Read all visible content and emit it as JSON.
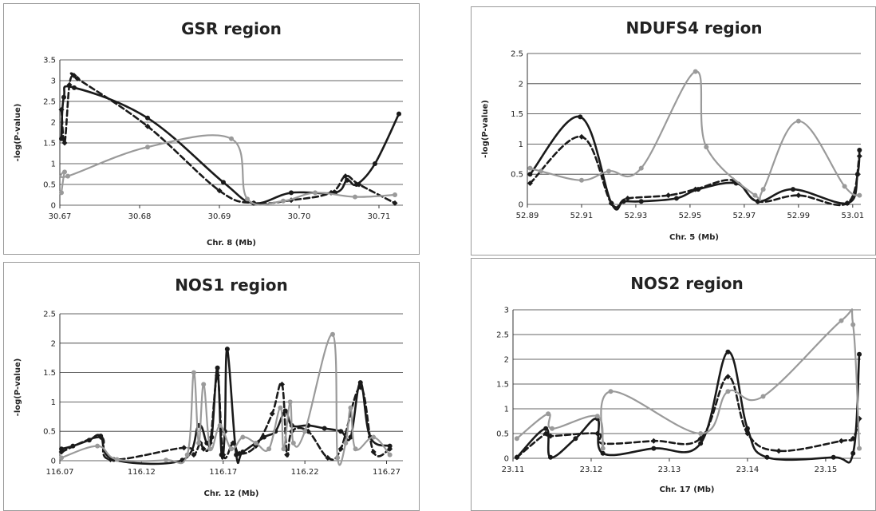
{
  "chart_data": [
    {
      "type": "line",
      "title": "GSR region",
      "xlabel": "Chr. 8 (Mb)",
      "ylabel": "-log(P-value)",
      "xlim": [
        30.67,
        30.713
      ],
      "ylim": [
        0,
        3.5
      ],
      "xticks": [
        "30.67",
        "30.68",
        "30.69",
        "30.70",
        "30.71"
      ],
      "xtick_values": [
        30.67,
        30.68,
        30.69,
        30.7,
        30.71
      ],
      "yticks": [
        "0",
        "0.5",
        "1",
        "1.5",
        "2",
        "2.5",
        "3",
        "3.5"
      ],
      "ytick_values": [
        0,
        0.5,
        1,
        1.5,
        2,
        2.5,
        3,
        3.5
      ],
      "grid": true,
      "series": [
        {
          "style": "solid",
          "color": "#1a1a1a",
          "marker": true,
          "x": [
            30.6702,
            30.6705,
            30.6718,
            30.681,
            30.6905,
            30.6943,
            30.699,
            30.7045,
            30.706,
            30.7072,
            30.7095,
            30.7125
          ],
          "y": [
            1.6,
            2.6,
            2.83,
            2.1,
            0.55,
            0.05,
            0.3,
            0.3,
            0.6,
            0.5,
            1.0,
            2.2
          ]
        },
        {
          "style": "dashed",
          "color": "#1a1a1a",
          "marker": true,
          "x": [
            30.6702,
            30.6706,
            30.6712,
            30.6718,
            30.6722,
            30.681,
            30.69,
            30.6943,
            30.699,
            30.704,
            30.7058,
            30.7075,
            30.712
          ],
          "y": [
            2.3,
            1.5,
            2.9,
            3.12,
            3.05,
            1.9,
            0.35,
            0.05,
            0.12,
            0.3,
            0.7,
            0.5,
            0.05
          ]
        },
        {
          "style": "solid",
          "color": "#9a9a9a",
          "marker": true,
          "x": [
            30.6702,
            30.6706,
            30.671,
            30.681,
            30.6915,
            30.6935,
            30.698,
            30.702,
            30.707,
            30.712
          ],
          "y": [
            0.3,
            0.8,
            0.7,
            1.4,
            1.6,
            0.15,
            0.1,
            0.3,
            0.2,
            0.25
          ]
        }
      ]
    },
    {
      "type": "line",
      "title": "NDUFS4 region",
      "xlabel": "Chr. 5 (Mb)",
      "ylabel": "-log(P-value)",
      "xlim": [
        52.89,
        53.013
      ],
      "ylim": [
        0,
        2.5
      ],
      "xticks": [
        "52.89",
        "52.91",
        "52.93",
        "52.95",
        "52.97",
        "52.99",
        "53.01"
      ],
      "xtick_values": [
        52.89,
        52.91,
        52.93,
        52.95,
        52.97,
        52.99,
        53.01
      ],
      "yticks": [
        "0",
        "0.5",
        "1",
        "1.5",
        "2",
        "2.5"
      ],
      "ytick_values": [
        0,
        0.5,
        1,
        1.5,
        2,
        2.5
      ],
      "grid": true,
      "series": [
        {
          "style": "solid",
          "color": "#1a1a1a",
          "marker": true,
          "x": [
            52.891,
            52.9095,
            52.921,
            52.9255,
            52.932,
            52.945,
            52.953,
            52.967,
            52.975,
            52.988,
            53.008,
            53.0118,
            53.0125
          ],
          "y": [
            0.5,
            1.45,
            0.02,
            0.05,
            0.05,
            0.1,
            0.25,
            0.35,
            0.05,
            0.25,
            0.02,
            0.5,
            0.9
          ]
        },
        {
          "style": "dashed",
          "color": "#1a1a1a",
          "marker": true,
          "x": [
            52.891,
            52.91,
            52.921,
            52.927,
            52.942,
            52.952,
            52.966,
            52.975,
            52.99,
            53.008,
            53.0125
          ],
          "y": [
            0.35,
            1.12,
            0.02,
            0.1,
            0.15,
            0.25,
            0.4,
            0.05,
            0.15,
            0.02,
            0.8
          ]
        },
        {
          "style": "solid",
          "color": "#9a9a9a",
          "marker": true,
          "x": [
            52.891,
            52.895,
            52.91,
            52.92,
            52.932,
            52.952,
            52.956,
            52.974,
            52.977,
            52.99,
            53.007,
            53.0125
          ],
          "y": [
            0.6,
            0.55,
            0.4,
            0.55,
            0.6,
            2.2,
            0.95,
            0.15,
            0.25,
            1.38,
            0.3,
            0.15
          ]
        }
      ]
    },
    {
      "type": "line",
      "title": "NOS1 region",
      "xlabel": "Chr. 12 (Mb)",
      "ylabel": "-log(P-value)",
      "xlim": [
        116.07,
        116.28
      ],
      "ylim": [
        0,
        2.5
      ],
      "xticks": [
        "116.07",
        "116.12",
        "116.17",
        "116.22",
        "116.27"
      ],
      "xtick_values": [
        116.07,
        116.12,
        116.17,
        116.22,
        116.27
      ],
      "yticks": [
        "0",
        "0.5",
        "1",
        "1.5",
        "2",
        "2.5"
      ],
      "ytick_values": [
        0,
        0.5,
        1,
        1.5,
        2,
        2.5
      ],
      "grid": true,
      "series": [
        {
          "style": "solid",
          "color": "#1a1a1a",
          "marker": true,
          "x": [
            116.071,
            116.078,
            116.088,
            116.095,
            116.103,
            116.145,
            116.155,
            116.16,
            116.163,
            116.1665,
            116.169,
            116.171,
            116.1725,
            116.178,
            116.182,
            116.195,
            116.202,
            116.208,
            116.212,
            116.222,
            116.232,
            116.242,
            116.248,
            116.254,
            116.26,
            116.272
          ],
          "y": [
            0.2,
            0.25,
            0.35,
            0.42,
            0.02,
            0.01,
            0.6,
            0.3,
            0.4,
            1.58,
            0.1,
            0.5,
            1.9,
            0.1,
            0.15,
            0.4,
            0.5,
            0.85,
            0.6,
            0.6,
            0.55,
            0.5,
            0.4,
            1.33,
            0.4,
            0.25
          ]
        },
        {
          "style": "dashed",
          "color": "#1a1a1a",
          "marker": true,
          "x": [
            116.071,
            116.095,
            116.101,
            116.146,
            116.152,
            116.156,
            116.158,
            116.162,
            116.1665,
            116.17,
            116.176,
            116.18,
            116.19,
            116.2,
            116.206,
            116.209,
            116.212,
            116.222,
            116.234,
            116.242,
            116.254,
            116.262,
            116.272
          ],
          "y": [
            0.15,
            0.4,
            0.02,
            0.22,
            0.1,
            0.3,
            0.2,
            0.3,
            1.45,
            0.1,
            0.3,
            0.12,
            0.25,
            0.8,
            1.3,
            0.1,
            0.5,
            0.5,
            0.05,
            0.2,
            1.25,
            0.15,
            0.2
          ]
        },
        {
          "style": "solid",
          "color": "#9a9a9a",
          "marker": true,
          "x": [
            116.071,
            116.093,
            116.105,
            116.135,
            116.148,
            116.152,
            116.155,
            116.158,
            116.162,
            116.168,
            116.175,
            116.182,
            116.19,
            116.198,
            116.205,
            116.207,
            116.211,
            116.213,
            116.22,
            116.237,
            116.24,
            116.245,
            116.248,
            116.251,
            116.262,
            116.272
          ],
          "y": [
            0.05,
            0.25,
            0.02,
            0.01,
            0.1,
            1.5,
            0.3,
            1.3,
            0.2,
            0.6,
            0.2,
            0.4,
            0.3,
            0.2,
            0.9,
            0.2,
            1.0,
            0.3,
            0.5,
            2.15,
            0.05,
            0.3,
            0.9,
            0.2,
            0.4,
            0.1
          ]
        }
      ]
    },
    {
      "type": "line",
      "title": "NOS2 region",
      "xlabel": "Chr. 17 (Mb)",
      "ylabel": "",
      "xlim": [
        23.11,
        23.1545
      ],
      "ylim": [
        0,
        3
      ],
      "xticks": [
        "23.11",
        "23.12",
        "23.13",
        "23.14",
        "23.15"
      ],
      "xtick_values": [
        23.11,
        23.12,
        23.13,
        23.14,
        23.15
      ],
      "yticks": [
        "0",
        "0.5",
        "1",
        "1.5",
        "2",
        "2.5",
        "3"
      ],
      "ytick_values": [
        0,
        0.5,
        1,
        1.5,
        2,
        2.5,
        3
      ],
      "grid": true,
      "series": [
        {
          "style": "solid",
          "color": "#1a1a1a",
          "marker": true,
          "x": [
            23.1105,
            23.1142,
            23.1148,
            23.118,
            23.1208,
            23.1215,
            23.128,
            23.134,
            23.1375,
            23.14,
            23.1425,
            23.151,
            23.1535,
            23.1543
          ],
          "y": [
            0.02,
            0.6,
            0.02,
            0.4,
            0.8,
            0.1,
            0.2,
            0.3,
            2.15,
            0.6,
            0.02,
            0.02,
            0.1,
            2.1
          ]
        },
        {
          "style": "dashed",
          "color": "#1a1a1a",
          "marker": true,
          "x": [
            23.1105,
            23.1142,
            23.1148,
            23.1208,
            23.1215,
            23.128,
            23.134,
            23.1375,
            23.14,
            23.144,
            23.152,
            23.1535,
            23.1543
          ],
          "y": [
            0.02,
            0.5,
            0.45,
            0.5,
            0.3,
            0.35,
            0.4,
            1.65,
            0.5,
            0.15,
            0.35,
            0.4,
            0.8
          ]
        },
        {
          "style": "solid",
          "color": "#9a9a9a",
          "marker": true,
          "x": [
            23.1105,
            23.1145,
            23.115,
            23.1208,
            23.1215,
            23.1225,
            23.134,
            23.1375,
            23.142,
            23.152,
            23.1535,
            23.1543
          ],
          "y": [
            0.4,
            0.9,
            0.6,
            0.85,
            0.2,
            1.35,
            0.5,
            1.35,
            1.25,
            2.78,
            2.7,
            0.2
          ]
        }
      ]
    }
  ]
}
